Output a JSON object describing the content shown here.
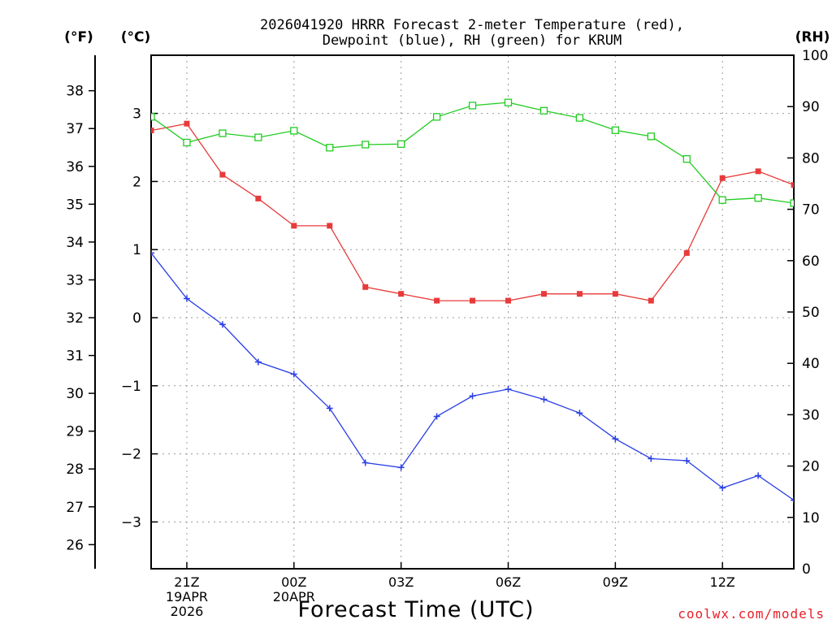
{
  "chart_data": {
    "type": "line",
    "title_lines": [
      "2026041920 HRRR Forecast 2-meter Temperature (red),",
      "Dewpoint (blue), RH (green) for KRUM"
    ],
    "xlabel": "Forecast Time (UTC)",
    "credit": "coolwx.com/models",
    "units": {
      "fahrenheit": "(°F)",
      "celsius": "(°C)",
      "rh": "(RH)"
    },
    "x_hours": [
      20,
      21,
      22,
      23,
      24,
      25,
      26,
      27,
      28,
      29,
      30,
      31,
      32,
      33,
      34,
      35,
      36,
      37,
      38
    ],
    "x_ticks": [
      {
        "hour": 21,
        "lines": [
          "21Z",
          "19APR",
          "2026"
        ]
      },
      {
        "hour": 24,
        "lines": [
          "00Z",
          "20APR"
        ]
      },
      {
        "hour": 27,
        "lines": [
          "03Z"
        ]
      },
      {
        "hour": 30,
        "lines": [
          "06Z"
        ]
      },
      {
        "hour": 33,
        "lines": [
          "09Z"
        ]
      },
      {
        "hour": 36,
        "lines": [
          "12Z"
        ]
      }
    ],
    "celsius_axis": {
      "range": [
        -3.7,
        3.7
      ],
      "ticks": [
        "3",
        "2",
        "1",
        "0",
        "−1",
        "−2",
        "−3"
      ],
      "tick_values": [
        3,
        2,
        1,
        0,
        -1,
        -2,
        -3
      ]
    },
    "fahrenheit_axis": {
      "ticks": [
        "38",
        "37",
        "36",
        "35",
        "34",
        "33",
        "32",
        "31",
        "30",
        "29",
        "28",
        "27",
        "26"
      ],
      "tick_values": [
        38,
        37,
        36,
        35,
        34,
        33,
        32,
        31,
        30,
        29,
        28,
        27,
        26
      ]
    },
    "rh_axis": {
      "range": [
        0,
        100
      ],
      "ticks": [
        "100",
        "90",
        "80",
        "70",
        "60",
        "50",
        "40",
        "30",
        "20",
        "10",
        "0"
      ],
      "tick_values": [
        100,
        90,
        80,
        70,
        60,
        50,
        40,
        30,
        20,
        10,
        0
      ]
    },
    "series": [
      {
        "name": "Temperature",
        "color": "#e83a3a",
        "marker": "filled-square",
        "axis": "celsius",
        "values": [
          2.75,
          2.85,
          2.1,
          1.75,
          1.35,
          1.35,
          0.45,
          0.35,
          0.25,
          0.25,
          0.25,
          0.35,
          0.35,
          0.35,
          0.25,
          0.95,
          2.05,
          2.15,
          1.95
        ]
      },
      {
        "name": "Dewpoint",
        "color": "#2a3ee6",
        "marker": "plus",
        "axis": "celsius",
        "values": [
          0.95,
          0.28,
          -0.1,
          -0.65,
          -0.83,
          -1.33,
          -2.13,
          -2.2,
          -1.45,
          -1.15,
          -1.05,
          -1.2,
          -1.4,
          -1.78,
          -2.07,
          -2.1,
          -2.5,
          -2.32,
          -2.68
        ]
      },
      {
        "name": "RH",
        "color": "#22cc22",
        "marker": "open-square",
        "axis": "rh",
        "values": [
          88,
          83,
          84.8,
          84,
          85.3,
          82,
          82.6,
          82.7,
          88,
          90.2,
          90.8,
          89.2,
          87.8,
          85.4,
          84.2,
          79.8,
          71.8,
          72.2,
          71.2
        ]
      }
    ]
  }
}
